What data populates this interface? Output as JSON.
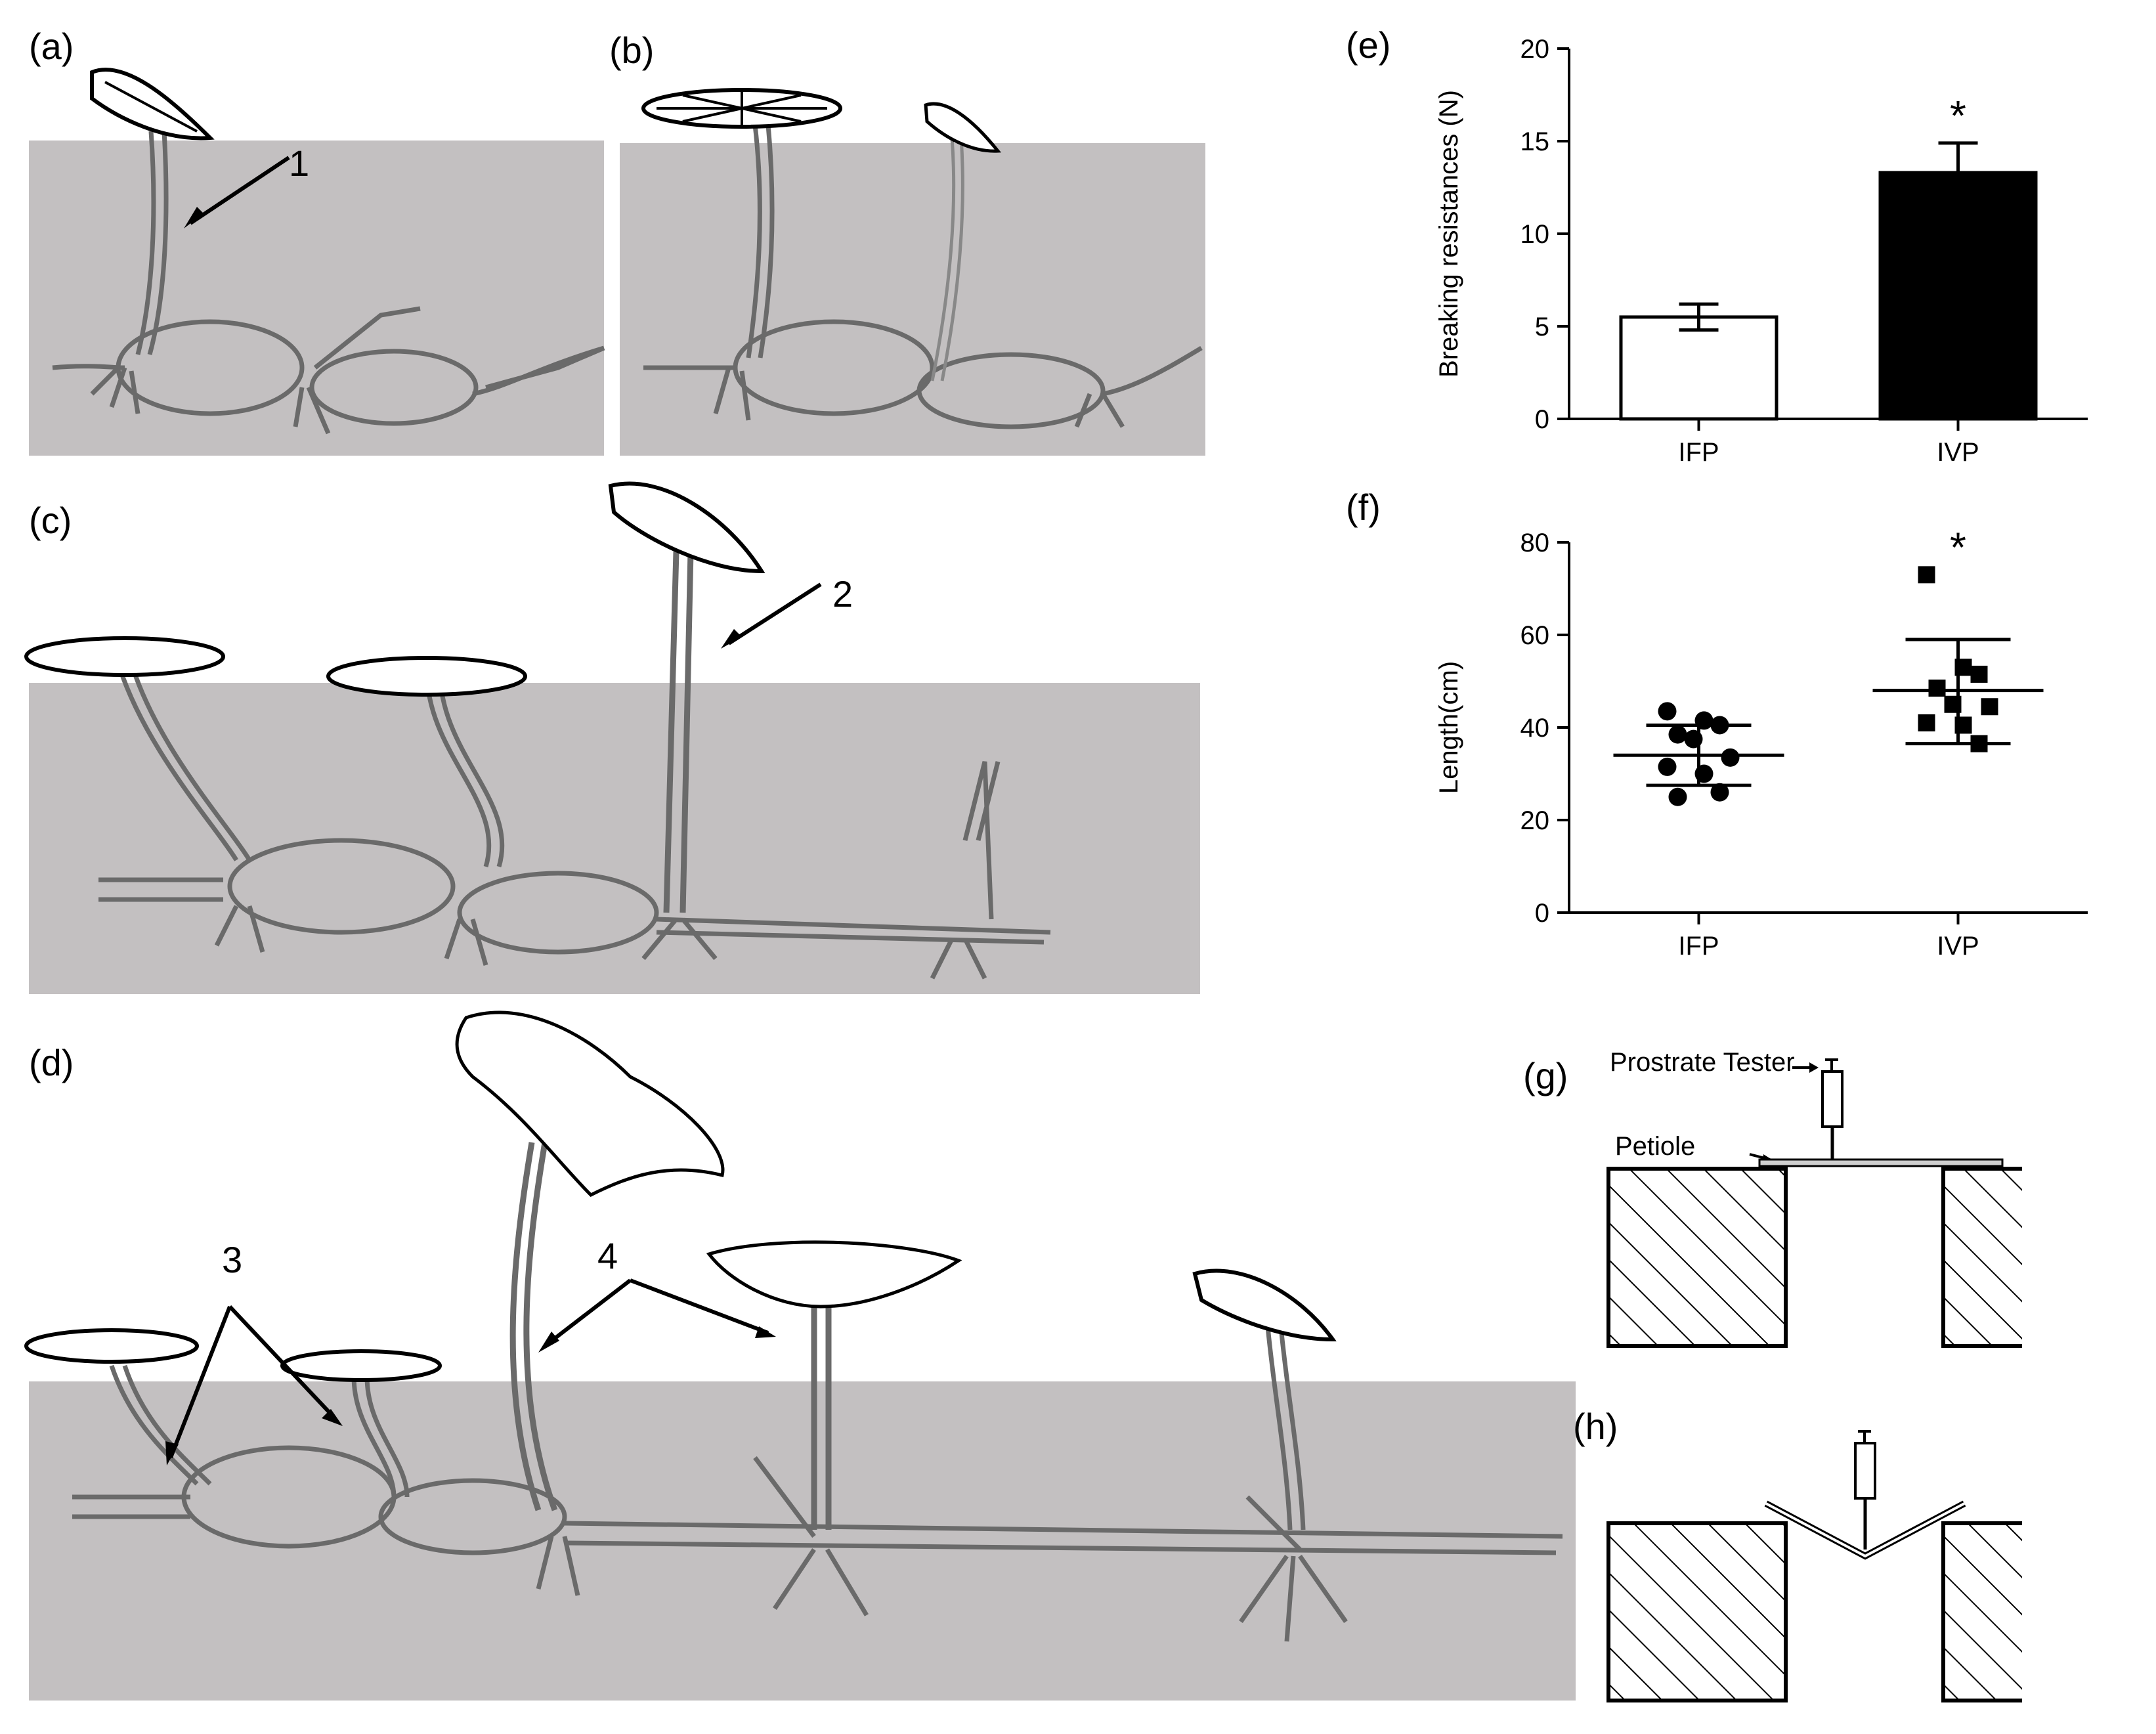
{
  "panels": {
    "a": "(a)",
    "b": "(b)",
    "c": "(c)",
    "d": "(d)",
    "e": "(e)",
    "f": "(f)",
    "g": "(g)",
    "h": "(h)"
  },
  "callouts": {
    "one": "1",
    "two": "2",
    "three": "3",
    "four": "4"
  },
  "colors": {
    "water": "#c3c0c1",
    "plant": "#6a6a6a",
    "bar_ifp": "#ffffff",
    "bar_ivp": "#000000"
  },
  "tester": {
    "label": "Prostrate Tester",
    "petiole": "Petiole"
  },
  "chart_data": [
    {
      "panel": "e",
      "type": "bar",
      "categories": [
        "IFP",
        "IVP"
      ],
      "values": [
        5.5,
        13.3
      ],
      "errors": [
        0.7,
        1.6
      ],
      "bar_colors": [
        "#ffffff",
        "#000000"
      ],
      "ylabel": "Breaking resistances (N)",
      "ylim": [
        0,
        20
      ],
      "yticks": [
        "0",
        "5",
        "10",
        "15",
        "20"
      ],
      "annotation": "*"
    },
    {
      "panel": "f",
      "type": "scatter",
      "categories": [
        "IFP",
        "IVP"
      ],
      "groups": [
        {
          "category": "IFP",
          "marker": "circle",
          "values": [
            43.5,
            41.5,
            40.5,
            38.5,
            37.5,
            33.5,
            31.5,
            30.0,
            26.0,
            25.0
          ],
          "mean": 34.0,
          "sd_low": 27.5,
          "sd_high": 40.5
        },
        {
          "category": "IVP",
          "marker": "square",
          "values": [
            73.0,
            53.0,
            51.5,
            48.5,
            45.0,
            44.5,
            41.0,
            40.5,
            36.5
          ],
          "mean": 48.0,
          "sd_low": 36.5,
          "sd_high": 59.0
        }
      ],
      "ylabel": "Length(cm)",
      "ylim": [
        0,
        80
      ],
      "yticks": [
        "0",
        "20",
        "40",
        "60",
        "80"
      ],
      "annotation": "*"
    }
  ]
}
